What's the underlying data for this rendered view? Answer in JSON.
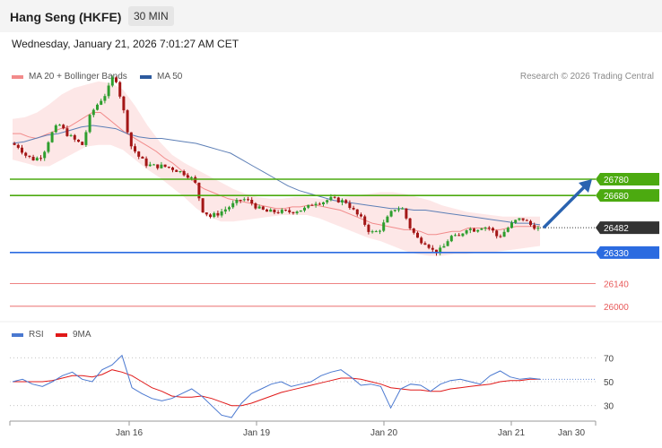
{
  "header": {
    "title": "Hang Seng (HKFE)",
    "interval": "30 MIN"
  },
  "datetime": "Wednesday, January 21, 2026 7:01:27 AM CET",
  "legend": {
    "ma20": {
      "label": "MA 20 + Bollinger Bands",
      "color": "#f28b8b"
    },
    "ma50": {
      "label": "MA 50",
      "color": "#2c5a9e"
    }
  },
  "credit": "Research © 2026 Trading Central",
  "rsi_legend": {
    "rsi": {
      "label": "RSI",
      "color": "#4a78d0"
    },
    "ma9": {
      "label": "9MA",
      "color": "#e01818"
    }
  },
  "chart_data": [
    {
      "type": "candlestick",
      "title": "Hang Seng (HKFE)",
      "y_range": [
        25900,
        27550
      ],
      "x_labels": [
        "Jan 16",
        "Jan 19",
        "Jan 20",
        "Jan 21",
        "Jan 30"
      ],
      "last_price": 26482,
      "levels": [
        {
          "value": 26780,
          "label": "26780",
          "kind": "resistance",
          "color": "#4caa10"
        },
        {
          "value": 26680,
          "label": "26680",
          "kind": "resistance",
          "color": "#4caa10"
        },
        {
          "value": 26482,
          "label": "26482",
          "kind": "last",
          "color": "#333333"
        },
        {
          "value": 26330,
          "label": "26330",
          "kind": "support",
          "color": "#2b6be0"
        },
        {
          "value": 26140,
          "label": "26140",
          "kind": "support-minor",
          "color": "#e85a5a"
        },
        {
          "value": 26000,
          "label": "26000",
          "kind": "support-minor",
          "color": "#e85a5a"
        }
      ],
      "arrow": {
        "from": 26482,
        "to": 26780,
        "color": "#2a63b0"
      },
      "price_path": [
        27000,
        26980,
        26920,
        26900,
        26930,
        27050,
        27120,
        27060,
        27020,
        26990,
        27180,
        27250,
        27310,
        27430,
        27230,
        26990,
        26920,
        26870,
        26860,
        26860,
        26850,
        26830,
        26810,
        26770,
        26590,
        26550,
        26570,
        26600,
        26630,
        26660,
        26640,
        26600,
        26580,
        26580,
        26580,
        26580,
        26590,
        26600,
        26640,
        26640,
        26660,
        26650,
        26640,
        26580,
        26530,
        26450,
        26460,
        26530,
        26600,
        26600,
        26480,
        26410,
        26390,
        26330,
        26350,
        26430,
        26420,
        26480,
        26470,
        26490,
        26480,
        26420,
        26470,
        26520,
        26540,
        26500,
        26482
      ],
      "ma20_path": [
        27060,
        27060,
        27040,
        27030,
        27050,
        27070,
        27090,
        27100,
        27130,
        27160,
        27190,
        27190,
        27150,
        27110,
        27070,
        27040,
        27010,
        26980,
        26950,
        26910,
        26880,
        26840,
        26800,
        26750,
        26720,
        26700,
        26680,
        26660,
        26650,
        26640,
        26630,
        26620,
        26610,
        26600,
        26600,
        26610,
        26610,
        26620,
        26620,
        26610,
        26600,
        26590,
        26570,
        26550,
        26530,
        26510,
        26500,
        26490,
        26480,
        26470,
        26470,
        26460,
        26440,
        26440,
        26450,
        26460,
        26460,
        26480,
        26480,
        26480,
        26470,
        26470,
        26480,
        26490,
        26490,
        26490,
        26490
      ],
      "ma50_path": [
        27000,
        27010,
        27030,
        27050,
        27060,
        27080,
        27100,
        27110,
        27100,
        27090,
        27060,
        27040,
        27030,
        27030,
        27020,
        27010,
        27000,
        26980,
        26960,
        26940,
        26900,
        26860,
        26820,
        26780,
        26740,
        26710,
        26690,
        26670,
        26650,
        26640,
        26630,
        26620,
        26610,
        26600,
        26600,
        26590,
        26590,
        26580,
        26570,
        26560,
        26550,
        26540,
        26530,
        26520,
        26510,
        26510,
        26500
      ],
      "bb_upper_path": [
        27150,
        27160,
        27190,
        27240,
        27300,
        27340,
        27360,
        27380,
        27370,
        27330,
        27230,
        27110,
        27010,
        26930,
        26880,
        26840,
        26800,
        26760,
        26720,
        26690,
        26670,
        26660,
        26660,
        26670,
        26670,
        26660,
        26660,
        26670,
        26680,
        26690,
        26700,
        26700,
        26690,
        26670,
        26650,
        26620,
        26600,
        26580,
        26570,
        26560,
        26550,
        26550,
        26550,
        26550
      ],
      "bb_lower_path": [
        26900,
        26880,
        26860,
        26860,
        26900,
        26940,
        26980,
        26990,
        26990,
        26960,
        26900,
        26840,
        26790,
        26730,
        26670,
        26600,
        26550,
        26520,
        26520,
        26530,
        26540,
        26550,
        26560,
        26560,
        26560,
        26540,
        26510,
        26480,
        26450,
        26420,
        26400,
        26370,
        26340,
        26320,
        26310,
        26310,
        26320,
        26320,
        26330,
        26330,
        26340,
        26350,
        26360,
        26370
      ]
    },
    {
      "type": "line",
      "title": "RSI",
      "y_range": [
        20,
        80
      ],
      "y_ticks": [
        30,
        50,
        70
      ],
      "series": [
        {
          "name": "RSI",
          "color": "#4a78d0",
          "values": [
            50,
            52,
            48,
            46,
            50,
            55,
            58,
            52,
            50,
            60,
            64,
            72,
            45,
            40,
            36,
            34,
            36,
            40,
            44,
            38,
            30,
            22,
            20,
            32,
            40,
            44,
            48,
            50,
            46,
            48,
            50,
            55,
            58,
            60,
            54,
            47,
            48,
            46,
            28,
            44,
            48,
            47,
            42,
            48,
            51,
            52,
            50,
            48,
            55,
            59,
            54,
            52,
            53,
            52
          ]
        },
        {
          "name": "9MA",
          "color": "#e01818",
          "values": [
            50,
            50,
            50,
            50,
            51,
            53,
            55,
            55,
            54,
            56,
            60,
            58,
            55,
            50,
            45,
            42,
            38,
            37,
            37,
            38,
            36,
            33,
            30,
            30,
            32,
            35,
            38,
            41,
            43,
            45,
            47,
            49,
            51,
            53,
            53,
            52,
            50,
            48,
            45,
            44,
            43,
            43,
            42,
            42,
            44,
            45,
            46,
            47,
            48,
            50,
            51,
            51,
            52,
            52
          ]
        }
      ]
    }
  ]
}
